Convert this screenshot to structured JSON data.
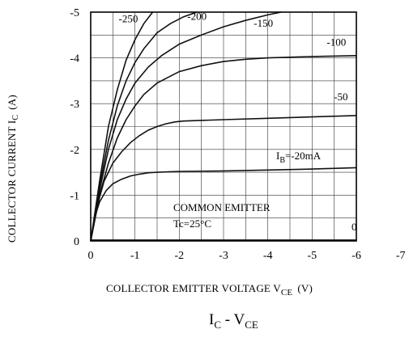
{
  "chart_data": {
    "type": "line",
    "xlabel_main": "COLLECTOR EMITTER VOLTAGE V",
    "xlabel_sub": "CE",
    "xlabel_unit": "(V)",
    "ylabel_main": "COLLECTOR CURRENT I",
    "ylabel_sub": "C",
    "ylabel_unit": "(A)",
    "caption_main": "I",
    "caption_sub1": "C",
    "caption_mid": " - V",
    "caption_sub2": "CE",
    "xlim": [
      0,
      -7
    ],
    "ylim": [
      0,
      -5
    ],
    "x_ticks": [
      {
        "value": 0,
        "label": "0"
      },
      {
        "value": -1,
        "label": "-1"
      },
      {
        "value": -2,
        "label": "-2"
      },
      {
        "value": -3,
        "label": "-3"
      },
      {
        "value": -4,
        "label": "-4"
      },
      {
        "value": -5,
        "label": "-5"
      },
      {
        "value": -6,
        "label": "-6"
      },
      {
        "value": -7,
        "label": "-7"
      }
    ],
    "y_ticks": [
      {
        "value": 0,
        "label": "0"
      },
      {
        "value": -1,
        "label": "-1"
      },
      {
        "value": -2,
        "label": "-2"
      },
      {
        "value": -3,
        "label": "-3"
      },
      {
        "value": -4,
        "label": "-4"
      },
      {
        "value": -5,
        "label": "-5"
      }
    ],
    "grid": true,
    "grid_minor_step": 0.5,
    "annotations": {
      "ib_prefix": "I",
      "ib_sub": "B",
      "ib_rest": "=-20mA",
      "common_emitter": "COMMON EMITTER",
      "tc": "Tc=25°C"
    },
    "series": [
      {
        "name": "0",
        "label_pos": [
          -5.95,
          -0.23
        ],
        "x": [
          0,
          -6
        ],
        "y": [
          -0.02,
          -0.02
        ]
      },
      {
        "name": "-20mA",
        "x": [
          0,
          -0.05,
          -0.1,
          -0.2,
          -0.35,
          -0.5,
          -0.7,
          -0.9,
          -1.1,
          -1.3,
          -1.5,
          -2,
          -3,
          -4,
          -5,
          -6
        ],
        "y": [
          0,
          -0.3,
          -0.55,
          -0.85,
          -1.1,
          -1.25,
          -1.35,
          -1.42,
          -1.46,
          -1.49,
          -1.5,
          -1.52,
          -1.53,
          -1.55,
          -1.57,
          -1.6
        ]
      },
      {
        "name": "-50",
        "label_pos": [
          -5.65,
          -3.07
        ],
        "x": [
          0,
          -0.1,
          -0.2,
          -0.3,
          -0.5,
          -0.7,
          -0.9,
          -1.1,
          -1.3,
          -1.5,
          -1.7,
          -1.9,
          -2.1,
          -3,
          -4,
          -5,
          -6
        ],
        "y": [
          0,
          -0.5,
          -0.95,
          -1.3,
          -1.7,
          -1.95,
          -2.15,
          -2.3,
          -2.42,
          -2.5,
          -2.56,
          -2.6,
          -2.62,
          -2.65,
          -2.68,
          -2.71,
          -2.74
        ]
      },
      {
        "name": "-100",
        "label_pos": [
          -5.55,
          -4.27
        ],
        "x": [
          0,
          -0.2,
          -0.4,
          -0.6,
          -0.8,
          -1,
          -1.2,
          -1.5,
          -2,
          -2.5,
          -3,
          -3.5,
          -4,
          -5,
          -6
        ],
        "y": [
          0,
          -1.0,
          -1.7,
          -2.25,
          -2.65,
          -2.95,
          -3.2,
          -3.45,
          -3.7,
          -3.83,
          -3.92,
          -3.97,
          -4.0,
          -4.03,
          -4.05
        ]
      },
      {
        "name": "-150",
        "label_pos": [
          -3.9,
          -4.68
        ],
        "x": [
          0,
          -0.2,
          -0.4,
          -0.6,
          -0.8,
          -1,
          -1.3,
          -1.6,
          -2,
          -2.5,
          -3,
          -3.5,
          -4,
          -4.3
        ],
        "y": [
          0,
          -1.1,
          -2.0,
          -2.65,
          -3.1,
          -3.45,
          -3.8,
          -4.05,
          -4.3,
          -4.5,
          -4.68,
          -4.82,
          -4.94,
          -5.0
        ]
      },
      {
        "name": "-200",
        "label_pos": [
          -2.4,
          -4.83
        ],
        "x": [
          0,
          -0.2,
          -0.4,
          -0.6,
          -0.8,
          -1,
          -1.2,
          -1.5,
          -1.8,
          -2.1,
          -2.4
        ],
        "y": [
          0,
          -1.2,
          -2.2,
          -2.95,
          -3.5,
          -3.9,
          -4.2,
          -4.55,
          -4.75,
          -4.9,
          -5.0
        ]
      },
      {
        "name": "-250",
        "label_pos": [
          -0.85,
          -4.78
        ],
        "x": [
          0,
          -0.2,
          -0.4,
          -0.6,
          -0.8,
          -1,
          -1.2,
          -1.4
        ],
        "y": [
          0,
          -1.3,
          -2.5,
          -3.3,
          -3.95,
          -4.4,
          -4.75,
          -5.0
        ]
      }
    ]
  }
}
